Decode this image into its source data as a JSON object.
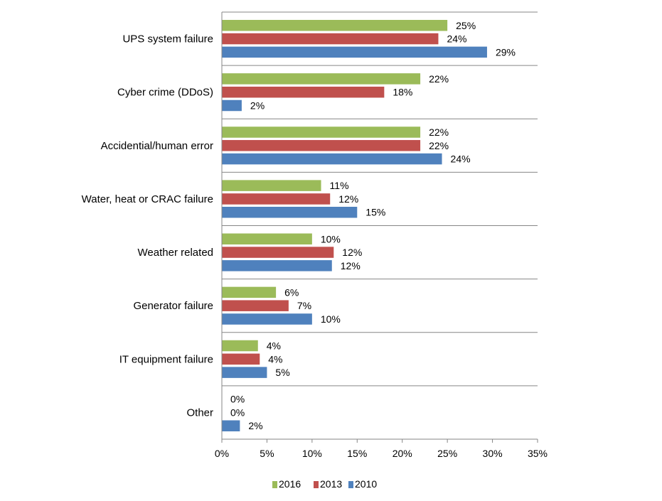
{
  "chart_data": {
    "type": "bar",
    "orientation": "horizontal",
    "categories": [
      "UPS system failure",
      "Cyber crime (DDoS)",
      "Accidential/human error",
      "Water, heat or CRAC failure",
      "Weather related",
      "Generator failure",
      "IT equipment failure",
      "Other"
    ],
    "series": [
      {
        "name": "2016",
        "color": "#9BBB59",
        "values": [
          25,
          22,
          22,
          11,
          10,
          6,
          4,
          0
        ],
        "labels": [
          "25%",
          "22%",
          "22%",
          "11%",
          "10%",
          "6%",
          "4%",
          "0%"
        ]
      },
      {
        "name": "2013",
        "color": "#C0504D",
        "values": [
          24,
          18,
          22,
          12,
          12.4,
          7.4,
          4.2,
          0
        ],
        "labels": [
          "24%",
          "18%",
          "22%",
          "12%",
          "12%",
          "7%",
          "4%",
          "0%"
        ]
      },
      {
        "name": "2010",
        "color": "#4F81BD",
        "values": [
          29.4,
          2.2,
          24.4,
          15,
          12.2,
          10,
          5,
          2
        ],
        "labels": [
          "29%",
          "2%",
          "24%",
          "15%",
          "12%",
          "10%",
          "5%",
          "2%"
        ]
      }
    ],
    "xlim": [
      0,
      35
    ],
    "xticks": [
      0,
      5,
      10,
      15,
      20,
      25,
      30,
      35
    ],
    "xtick_labels": [
      "0%",
      "5%",
      "10%",
      "15%",
      "20%",
      "25%",
      "30%",
      "35%"
    ],
    "title": "",
    "xlabel": "",
    "ylabel": "",
    "grid": "horizontal category separators",
    "legend": {
      "position": "bottom-center",
      "entries": [
        "2016",
        "2013",
        "2010"
      ]
    }
  }
}
